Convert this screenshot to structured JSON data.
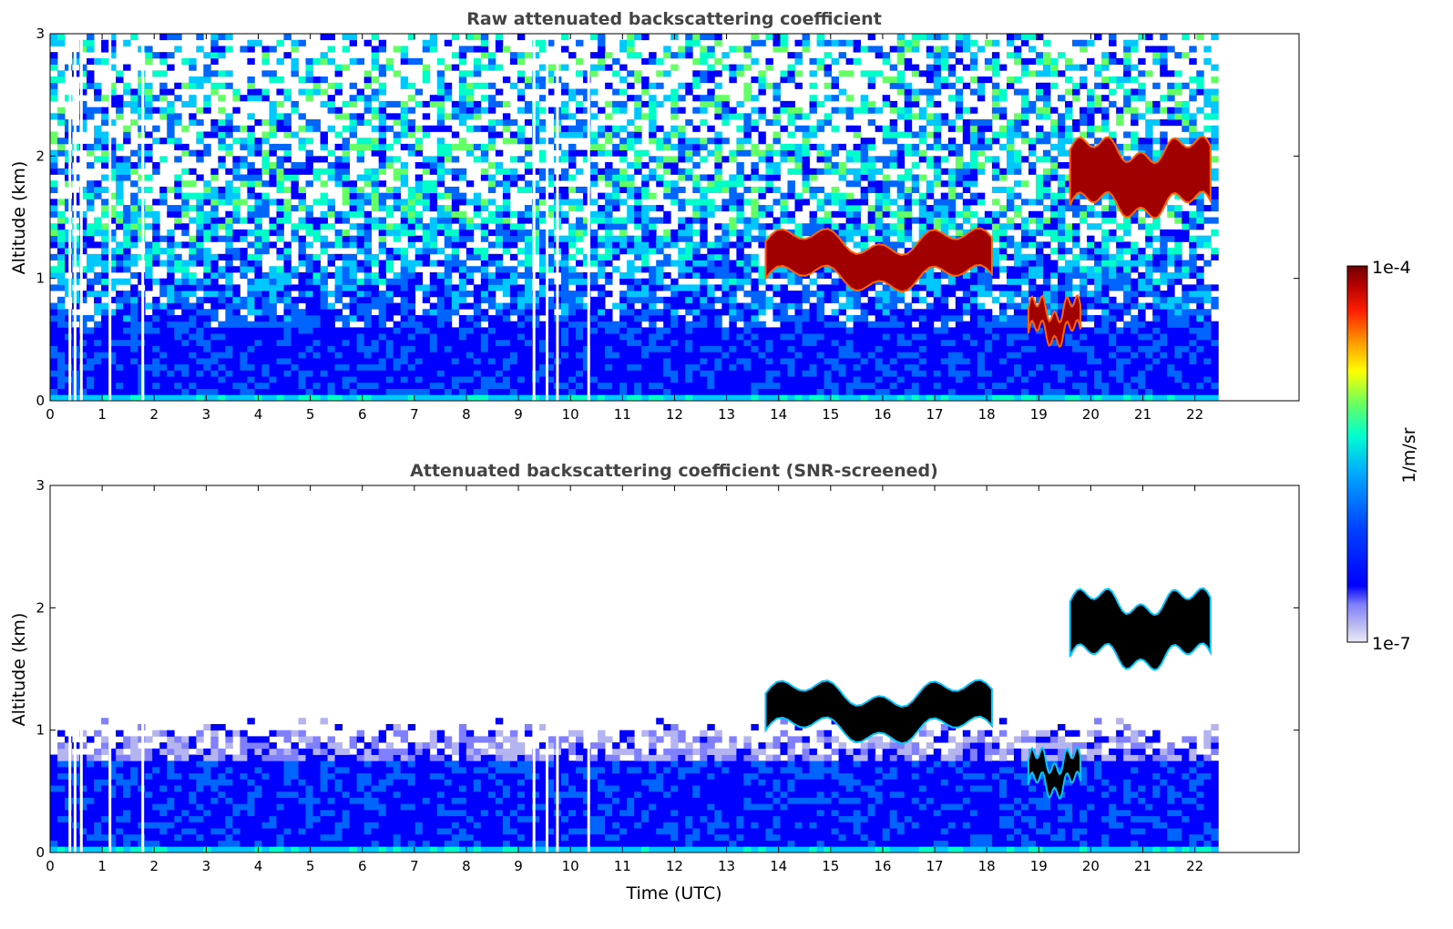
{
  "chart_data": [
    {
      "type": "heatmap",
      "title": "Raw attenuated backscattering coefficient",
      "xlabel": "",
      "ylabel": "Altitude (km)",
      "xlim": [
        0,
        24
      ],
      "ylim": [
        0,
        3
      ],
      "xticks": [
        "0",
        "1",
        "2",
        "3",
        "4",
        "5",
        "6",
        "7",
        "8",
        "9",
        "10",
        "11",
        "12",
        "13",
        "14",
        "15",
        "16",
        "17",
        "18",
        "19",
        "20",
        "21",
        "22"
      ],
      "yticks": [
        "0",
        "1",
        "2",
        "3"
      ],
      "data_end_time": 22.45,
      "data_gaps_utc": [
        0.38,
        0.48,
        0.6,
        1.15,
        1.78,
        9.3,
        9.55,
        9.75,
        10.35
      ],
      "features": [
        {
          "name": "boundary layer",
          "start": 0,
          "end": 22.45,
          "top_km": 0.6,
          "level": 0.25
        },
        {
          "name": "cloud layer",
          "start": 13.75,
          "end": 18.1,
          "base_km": 1.0,
          "top_km": 1.3,
          "level": 0.95
        },
        {
          "name": "low cloud",
          "start": 18.8,
          "end": 19.8,
          "base_km": 0.55,
          "top_km": 0.75,
          "level": 0.95
        },
        {
          "name": "upper cloud",
          "start": 19.6,
          "end": 22.3,
          "base_km": 1.6,
          "top_km": 2.05,
          "level": 0.95
        }
      ]
    },
    {
      "type": "heatmap",
      "title": "Attenuated backscattering coefficient (SNR-screened)",
      "xlabel": "Time (UTC)",
      "ylabel": "Altitude (km)",
      "xlim": [
        0,
        24
      ],
      "ylim": [
        0,
        3
      ],
      "xticks": [
        "0",
        "1",
        "2",
        "3",
        "4",
        "5",
        "6",
        "7",
        "8",
        "9",
        "10",
        "11",
        "12",
        "13",
        "14",
        "15",
        "16",
        "17",
        "18",
        "19",
        "20",
        "21",
        "22"
      ],
      "yticks": [
        "0",
        "1",
        "2",
        "3"
      ],
      "data_end_time": 22.45,
      "data_gaps_utc": [
        0.38,
        0.48,
        0.6,
        1.15,
        1.78,
        9.3,
        9.55,
        9.75,
        10.35
      ],
      "features": [
        {
          "name": "boundary layer",
          "start": 0,
          "end": 22.45,
          "top_km": 0.75,
          "level": 0.25
        },
        {
          "name": "cloud layer",
          "start": 13.75,
          "end": 18.1,
          "base_km": 1.0,
          "top_km": 1.3,
          "level": 1.0
        },
        {
          "name": "low cloud",
          "start": 18.8,
          "end": 19.8,
          "base_km": 0.55,
          "top_km": 0.75,
          "level": 1.0
        },
        {
          "name": "upper cloud",
          "start": 19.6,
          "end": 22.3,
          "base_km": 1.6,
          "top_km": 2.05,
          "level": 1.0
        }
      ]
    }
  ],
  "colorbar": {
    "label": "1/m/sr",
    "max_label": "1e-4",
    "min_label": "1e-7",
    "range": [
      1e-07,
      0.0001
    ],
    "scale": "log",
    "colormap": [
      "#ebebf8",
      "#b4b4f0",
      "#8080ff",
      "#0000ff",
      "#0064ff",
      "#00c8ff",
      "#00ffc8",
      "#64ff64",
      "#ffff00",
      "#ffc800",
      "#ff6400",
      "#ff0000",
      "#a00000",
      "#700000"
    ]
  }
}
